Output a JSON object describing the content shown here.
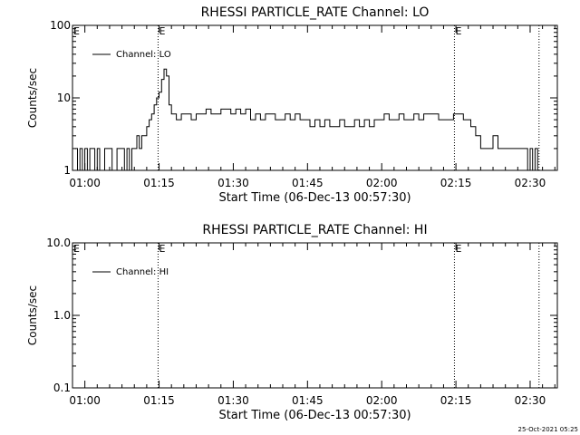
{
  "footer": {
    "timestamp": "25-Oct-2021 05:25"
  },
  "chart_data": [
    {
      "type": "line",
      "title": "RHESSI PARTICLE_RATE Channel: LO",
      "xlabel": "Start Time (06-Dec-13 00:57:30)",
      "ylabel": "Counts/sec",
      "x_ticks": [
        {
          "t": 2.5,
          "label": "01:00"
        },
        {
          "t": 17.5,
          "label": "01:15"
        },
        {
          "t": 32.5,
          "label": "01:30"
        },
        {
          "t": 47.5,
          "label": "01:45"
        },
        {
          "t": 62.5,
          "label": "02:00"
        },
        {
          "t": 77.5,
          "label": "02:15"
        },
        {
          "t": 92.5,
          "label": "02:30"
        }
      ],
      "y_ticks": [
        {
          "v": 1,
          "label": "1"
        },
        {
          "v": 10,
          "label": "10"
        },
        {
          "v": 100,
          "label": "100"
        }
      ],
      "xlim": [
        0,
        98
      ],
      "ylim": [
        1,
        100
      ],
      "y_scale": "log",
      "legend": {
        "label": "Channel: LO",
        "position": "top-left"
      },
      "vlines": [
        {
          "t": 17.3,
          "label": "E"
        },
        {
          "t": 77.2,
          "label": "E"
        },
        {
          "t": 94.3,
          "label": ""
        }
      ],
      "series": [
        {
          "x": [
            0.5,
            1.0,
            1.5,
            2.0,
            2.5,
            3.0,
            3.5,
            4.0,
            4.5,
            5.0,
            5.5,
            6.0,
            6.5,
            7.0,
            7.5,
            8.0,
            8.5,
            9.0,
            9.5,
            10.0,
            10.5,
            11.0,
            11.5,
            12.0,
            12.5,
            13.0,
            13.5,
            14.0,
            14.5,
            15.0,
            15.5,
            16.0,
            16.5,
            17.0,
            17.5,
            18.0,
            18.5,
            19.0,
            19.5,
            20.0,
            21.0,
            22.0,
            23.0,
            24.0,
            25.0,
            26.0,
            27.0,
            28.0,
            29.0,
            30.0,
            31.0,
            32.0,
            33.0,
            34.0,
            35.0,
            36.0,
            37.0,
            38.0,
            39.0,
            40.0,
            41.0,
            42.0,
            43.0,
            44.0,
            45.0,
            46.0,
            47.0,
            48.0,
            49.0,
            50.0,
            51.0,
            52.0,
            53.0,
            54.0,
            55.0,
            56.0,
            57.0,
            58.0,
            59.0,
            60.0,
            61.0,
            62.0,
            63.0,
            64.0,
            65.0,
            66.0,
            67.0,
            68.0,
            69.0,
            70.0,
            71.0,
            72.0,
            73.0,
            74.0,
            75.0,
            76.0,
            77.0,
            78.0,
            79.0,
            80.0,
            80.5,
            81.0,
            81.5,
            82.0,
            82.5,
            83.0,
            84.0,
            85.0,
            86.0,
            86.5,
            87.0,
            88.0,
            89.0,
            90.0,
            91.0,
            91.5,
            92.0,
            92.5,
            93.0,
            93.5,
            94.0
          ],
          "y": [
            2,
            1,
            2,
            1,
            2,
            1,
            2,
            2,
            1,
            2,
            1,
            1,
            2,
            2,
            2,
            1,
            1,
            2,
            2,
            2,
            1,
            2,
            1,
            2,
            2,
            3,
            2,
            3,
            3,
            4,
            5,
            6,
            8,
            10,
            12,
            18,
            25,
            20,
            8,
            6,
            5,
            6,
            6,
            5,
            6,
            6,
            7,
            6,
            6,
            7,
            7,
            6,
            7,
            6,
            7,
            5,
            6,
            5,
            6,
            6,
            5,
            5,
            6,
            5,
            6,
            5,
            5,
            4,
            5,
            4,
            5,
            4,
            4,
            5,
            4,
            4,
            5,
            4,
            5,
            4,
            5,
            5,
            6,
            5,
            5,
            6,
            5,
            5,
            6,
            5,
            6,
            6,
            6,
            5,
            5,
            5,
            6,
            6,
            5,
            5,
            4,
            4,
            3,
            3,
            2,
            2,
            2,
            3,
            2,
            2,
            2,
            2,
            2,
            2,
            2,
            2,
            1,
            2,
            1,
            2,
            1
          ]
        }
      ]
    },
    {
      "type": "line",
      "title": "RHESSI PARTICLE_RATE Channel: HI",
      "xlabel": "Start Time (06-Dec-13 00:57:30)",
      "ylabel": "Counts/sec",
      "x_ticks": [
        {
          "t": 2.5,
          "label": "01:00"
        },
        {
          "t": 17.5,
          "label": "01:15"
        },
        {
          "t": 32.5,
          "label": "01:30"
        },
        {
          "t": 47.5,
          "label": "01:45"
        },
        {
          "t": 62.5,
          "label": "02:00"
        },
        {
          "t": 77.5,
          "label": "02:15"
        },
        {
          "t": 92.5,
          "label": "02:30"
        }
      ],
      "y_ticks": [
        {
          "v": 0.1,
          "label": "0.1"
        },
        {
          "v": 1,
          "label": "1.0"
        },
        {
          "v": 10,
          "label": "10.0"
        }
      ],
      "xlim": [
        0,
        98
      ],
      "ylim": [
        0.1,
        10
      ],
      "y_scale": "log",
      "legend": {
        "label": "Channel: HI",
        "position": "top-left"
      },
      "vlines": [
        {
          "t": 17.3,
          "label": "E"
        },
        {
          "t": 77.2,
          "label": "E"
        },
        {
          "t": 94.3,
          "label": ""
        }
      ],
      "series": [
        {
          "x": [],
          "y": []
        }
      ]
    }
  ]
}
